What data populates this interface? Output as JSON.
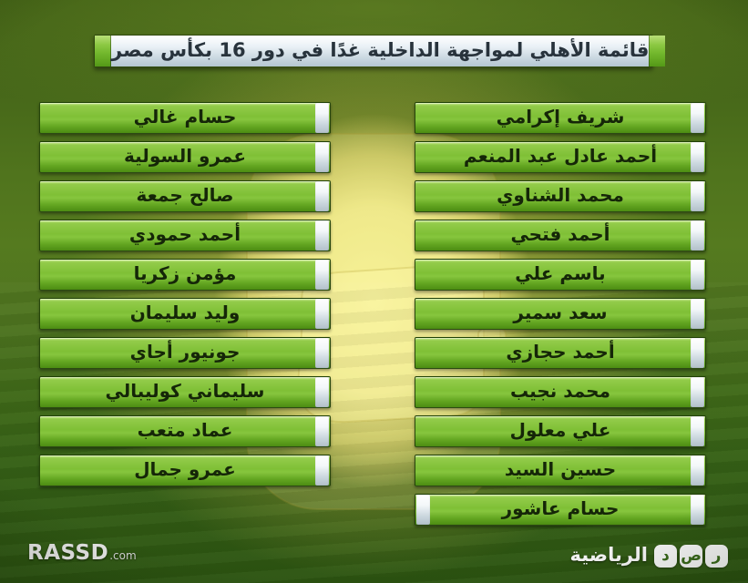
{
  "header": {
    "title": "قائمة الأهلي لمواجهة الداخلية غدًا في دور 16 بكأس مصر"
  },
  "left_column": {
    "players": [
      "حسام غالي",
      "عمرو السولية",
      "صالح جمعة",
      "أحمد حمودي",
      "مؤمن زكريا",
      "وليد سليمان",
      "جونيور أجاي",
      "سليماني كوليبالي",
      "عماد متعب",
      "عمرو جمال"
    ]
  },
  "right_column": {
    "players": [
      "شريف إكرامي",
      "أحمد عادل عبد المنعم",
      "محمد الشناوي",
      "أحمد فتحي",
      "باسم علي",
      "سعد سمير",
      "أحمد حجازي",
      "محمد نجيب",
      "علي معلول",
      "حسين السيد",
      "حسام عاشور"
    ]
  },
  "footer": {
    "rassd_text": "RASSD",
    "rassd_suffix": ".com",
    "rassd_letters": [
      "ر",
      "ص",
      "د"
    ],
    "sports_label": "الرياضية"
  },
  "colors": {
    "bar_green_top": "#93cc4a",
    "bar_green_bottom": "#4c8c12",
    "title_silver": "#ccd9e2",
    "glow_yellow": "#f3ef92",
    "field_green": "#3f6918",
    "text_dark": "#152608"
  }
}
